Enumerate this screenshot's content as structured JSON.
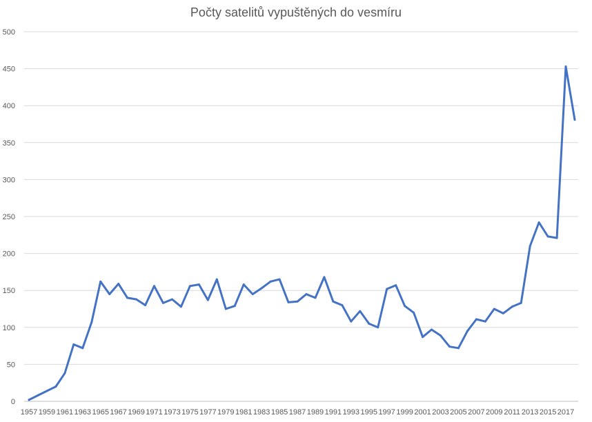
{
  "chart_data": {
    "type": "line",
    "title": "Počty satelitů vypuštěných do vesmíru",
    "xlabel": "",
    "ylabel": "",
    "ylim": [
      0,
      500
    ],
    "yticks": [
      0,
      50,
      100,
      150,
      200,
      250,
      300,
      350,
      400,
      450,
      500
    ],
    "xtick_labels": [
      "1957",
      "1959",
      "1961",
      "1963",
      "1965",
      "1967",
      "1969",
      "1971",
      "1973",
      "1975",
      "1977",
      "1979",
      "1981",
      "1983",
      "1985",
      "1987",
      "1989",
      "1991",
      "1993",
      "1995",
      "1997",
      "1999",
      "2001",
      "2003",
      "2005",
      "2007",
      "2009",
      "2011",
      "2013",
      "2015",
      "2017"
    ],
    "grid": "horizontal",
    "legend": "none",
    "series_color": "#4472C4",
    "series": [
      {
        "x": [
          1957,
          1958,
          1959,
          1960,
          1961,
          1962,
          1963,
          1964,
          1965,
          1966,
          1967,
          1968,
          1969,
          1970,
          1971,
          1972,
          1973,
          1974,
          1975,
          1976,
          1977,
          1978,
          1979,
          1980,
          1981,
          1982,
          1983,
          1984,
          1985,
          1986,
          1987,
          1988,
          1989,
          1990,
          1991,
          1992,
          1993,
          1994,
          1995,
          1996,
          1997,
          1998,
          1999,
          2000,
          2001,
          2002,
          2003,
          2004,
          2005,
          2006,
          2007,
          2008,
          2009,
          2010,
          2011,
          2012,
          2013,
          2014,
          2015,
          2016,
          2017,
          2018
        ],
        "values": [
          2,
          8,
          14,
          20,
          38,
          77,
          72,
          107,
          162,
          145,
          159,
          140,
          138,
          130,
          156,
          133,
          138,
          128,
          156,
          158,
          137,
          165,
          125,
          129,
          158,
          145,
          153,
          162,
          165,
          134,
          135,
          145,
          140,
          168,
          135,
          130,
          108,
          122,
          105,
          100,
          152,
          157,
          129,
          120,
          87,
          97,
          89,
          74,
          72,
          95,
          111,
          108,
          125,
          119,
          128,
          133,
          210,
          242,
          223,
          221,
          453,
          381
        ]
      }
    ]
  }
}
